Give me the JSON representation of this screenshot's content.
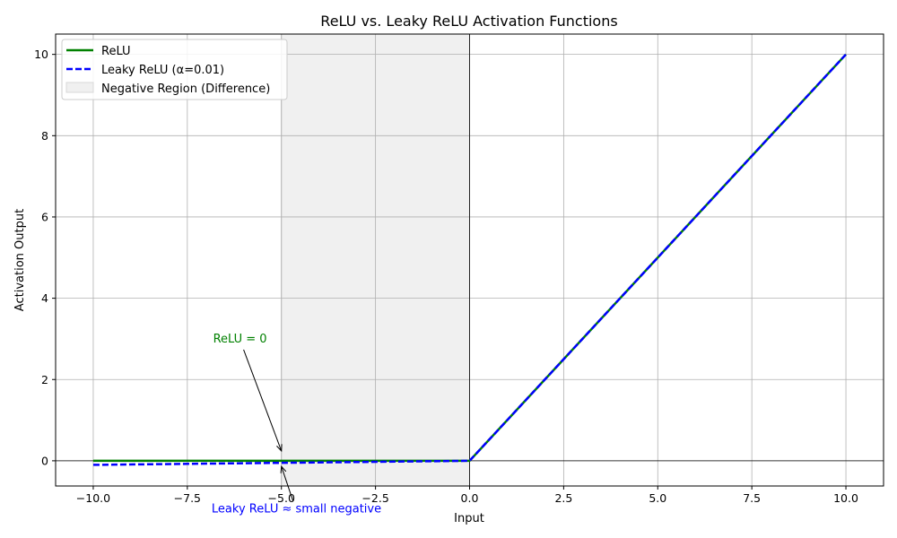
{
  "chart_data": {
    "type": "line",
    "title": "ReLU vs. Leaky ReLU Activation Functions",
    "xlabel": "Input",
    "ylabel": "Activation Output",
    "xlim": [
      -11,
      11
    ],
    "ylim": [
      -0.62,
      10.5
    ],
    "grid": true,
    "legend_position": "top-left",
    "xticks": [
      -10,
      -7.5,
      -5,
      -2.5,
      0,
      2.5,
      5,
      7.5,
      10
    ],
    "xtick_labels": [
      "−10.0",
      "−7.5",
      "−5.0",
      "−2.5",
      "0.0",
      "2.5",
      "5.0",
      "7.5",
      "10.0"
    ],
    "yticks": [
      0,
      2,
      4,
      6,
      8,
      10
    ],
    "ytick_labels": [
      "0",
      "2",
      "4",
      "6",
      "8",
      "10"
    ],
    "series": [
      {
        "name": "ReLU",
        "color": "#008000",
        "style": "solid",
        "x": [
          -10,
          0,
          10
        ],
        "y": [
          0,
          0,
          10
        ]
      },
      {
        "name": "Leaky ReLU (α=0.01)",
        "color": "#0000ff",
        "style": "dashed",
        "x": [
          -10,
          0,
          10
        ],
        "y": [
          -0.1,
          0,
          10
        ]
      }
    ],
    "shaded_region": {
      "name": "Negative Region (Difference)",
      "x_range": [
        -5,
        0
      ],
      "color": "#f0f0f0"
    },
    "reference_lines": {
      "h": 0,
      "v": 0
    },
    "annotations": [
      {
        "text": "ReLU = 0",
        "color": "#008000",
        "text_at": [
          -6.1,
          3.0
        ],
        "point_to": [
          -5,
          0
        ]
      },
      {
        "text": "Leaky ReLU ≈ small negative",
        "color": "#0000ff",
        "text_at": [
          -4.6,
          -1.2
        ],
        "point_to": [
          -5,
          -0.05
        ]
      }
    ]
  }
}
